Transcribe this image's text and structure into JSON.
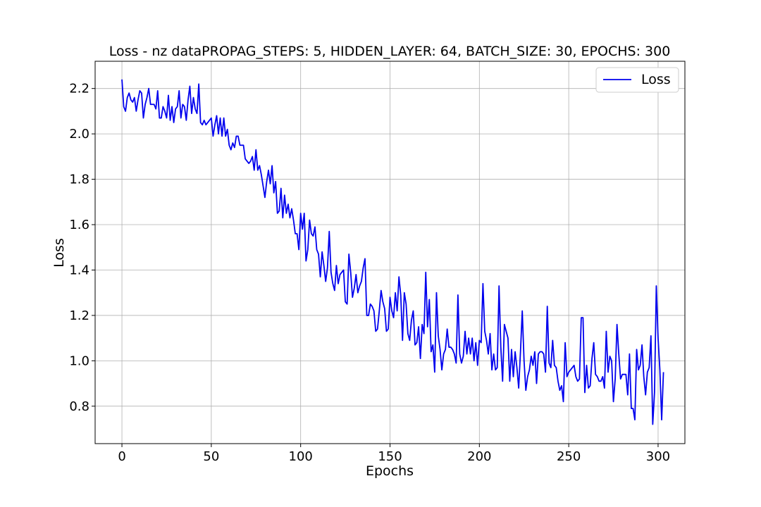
{
  "chart_data": {
    "type": "line",
    "title": "Loss - nz dataPROPAG_STEPS: 5, HIDDEN_LAYER: 64, BATCH_SIZE: 30, EPOCHS: 300",
    "xlabel": "Epochs",
    "ylabel": "Loss",
    "xlim": [
      -15,
      315
    ],
    "ylim": [
      0.635,
      2.32
    ],
    "xticks": [
      0,
      50,
      100,
      150,
      200,
      250,
      300
    ],
    "yticks": [
      0.8,
      1.0,
      1.2,
      1.4,
      1.6,
      1.8,
      2.0,
      2.2
    ],
    "grid": true,
    "legend_position": "top-right",
    "series": [
      {
        "name": "Loss",
        "color": "#0000ee",
        "x_start": 0,
        "x_step": 1,
        "values": [
          2.24,
          2.12,
          2.1,
          2.16,
          2.18,
          2.15,
          2.14,
          2.16,
          2.1,
          2.15,
          2.19,
          2.18,
          2.07,
          2.13,
          2.16,
          2.2,
          2.13,
          2.13,
          2.13,
          2.11,
          2.19,
          2.07,
          2.07,
          2.12,
          2.1,
          2.07,
          2.17,
          2.06,
          2.12,
          2.05,
          2.11,
          2.12,
          2.19,
          2.07,
          2.13,
          2.12,
          2.06,
          2.15,
          2.21,
          2.09,
          2.16,
          2.11,
          2.09,
          2.22,
          2.05,
          2.04,
          2.06,
          2.04,
          2.05,
          2.06,
          2.07,
          1.99,
          2.04,
          2.08,
          2.0,
          2.07,
          1.99,
          2.07,
          1.99,
          2.02,
          1.95,
          1.93,
          1.96,
          1.94,
          1.99,
          1.99,
          1.95,
          1.95,
          1.95,
          1.89,
          1.88,
          1.87,
          1.88,
          1.9,
          1.84,
          1.93,
          1.84,
          1.86,
          1.82,
          1.77,
          1.72,
          1.79,
          1.84,
          1.78,
          1.86,
          1.74,
          1.79,
          1.65,
          1.66,
          1.76,
          1.63,
          1.73,
          1.65,
          1.69,
          1.63,
          1.67,
          1.62,
          1.56,
          1.56,
          1.49,
          1.65,
          1.58,
          1.65,
          1.44,
          1.49,
          1.62,
          1.56,
          1.55,
          1.59,
          1.49,
          1.47,
          1.37,
          1.48,
          1.42,
          1.35,
          1.41,
          1.57,
          1.39,
          1.34,
          1.31,
          1.42,
          1.34,
          1.38,
          1.39,
          1.4,
          1.26,
          1.25,
          1.47,
          1.39,
          1.28,
          1.32,
          1.38,
          1.3,
          1.33,
          1.35,
          1.41,
          1.45,
          1.2,
          1.2,
          1.25,
          1.24,
          1.22,
          1.13,
          1.14,
          1.22,
          1.31,
          1.26,
          1.23,
          1.13,
          1.14,
          1.28,
          1.22,
          1.19,
          1.3,
          1.22,
          1.37,
          1.29,
          1.09,
          1.3,
          1.25,
          1.12,
          1.09,
          1.18,
          1.22,
          1.07,
          1.08,
          1.15,
          1.01,
          1.16,
          1.12,
          1.39,
          1.15,
          1.27,
          1.04,
          1.07,
          0.95,
          1.3,
          1.11,
          1.05,
          0.96,
          1.03,
          1.05,
          1.14,
          1.06,
          1.06,
          1.05,
          1.03,
          0.99,
          1.29,
          1.03,
          0.99,
          1.02,
          1.13,
          1.03,
          1.1,
          1.03,
          1.1,
          1.0,
          1.08,
          0.98,
          1.09,
          1.08,
          1.34,
          1.13,
          1.09,
          1.03,
          1.12,
          0.96,
          1.03,
          0.96,
          0.97,
          1.33,
          1.06,
          0.91,
          1.16,
          1.13,
          1.1,
          0.91,
          1.05,
          0.93,
          1.04,
          0.97,
          0.88,
          1.04,
          1.22,
          1.0,
          0.87,
          0.93,
          0.96,
          1.02,
          0.98,
          1.04,
          0.9,
          1.03,
          1.04,
          1.04,
          1.03,
          0.95,
          1.24,
          0.99,
          0.97,
          1.09,
          0.98,
          0.97,
          0.91,
          0.87,
          0.89,
          0.82,
          1.08,
          0.93,
          0.95,
          0.96,
          0.97,
          0.98,
          0.93,
          0.91,
          0.92,
          1.19,
          1.19,
          0.86,
          0.98,
          0.88,
          0.89,
          1.01,
          1.08,
          0.94,
          0.93,
          0.91,
          0.91,
          0.93,
          0.88,
          1.13,
          0.95,
          1.02,
          1.0,
          0.82,
          0.92,
          1.16,
          1.03,
          0.92,
          0.94,
          0.94,
          0.94,
          0.85,
          1.03,
          0.79,
          0.79,
          0.74,
          1.05,
          0.96,
          0.98,
          1.07,
          0.93,
          0.85,
          0.95,
          0.97,
          1.11,
          0.72,
          0.86,
          1.33,
          1.1,
          0.96,
          0.74,
          0.95
        ]
      }
    ]
  }
}
